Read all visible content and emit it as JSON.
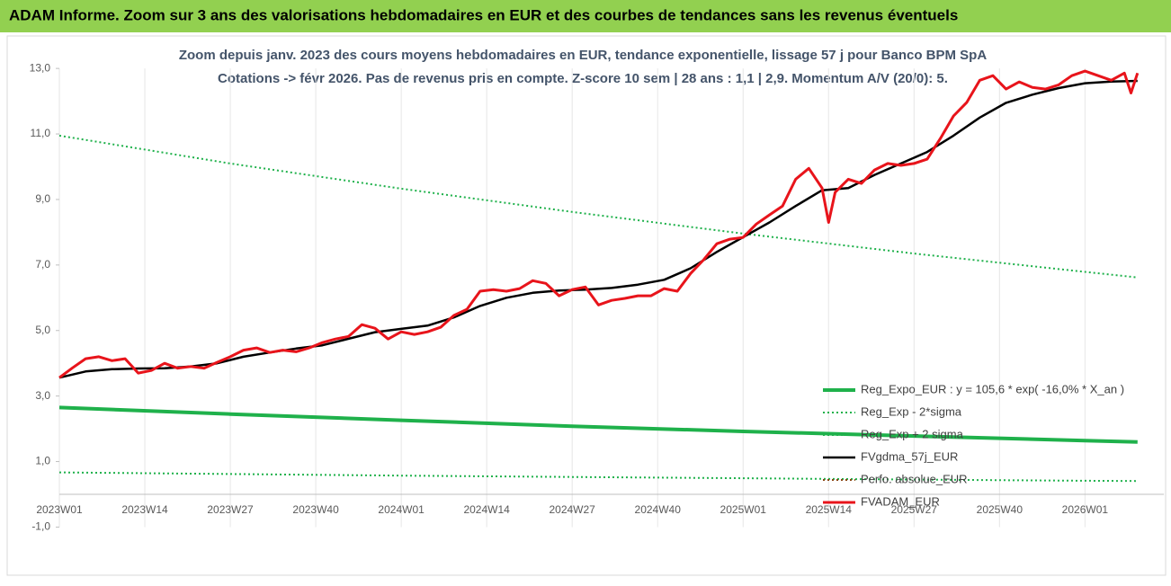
{
  "header": {
    "title": "ADAM Informe. Zoom sur 3 ans des valorisations hebdomadaires en EUR et des courbes de tendances sans les revenus éventuels"
  },
  "chart_data": {
    "type": "line",
    "title": "Zoom depuis janv. 2023 des cours moyens hebdomadaires en EUR, tendance exponentielle, lissage 57 j pour Banco BPM SpA",
    "subtitle": "Cotations -> févr 2026.  Pas de revenus pris en compte. Z-score 10 sem | 28 ans : 1,1 | 2,9. Momentum A/V (20/0): 5.",
    "xlim": [
      0,
      168
    ],
    "xticks": [
      {
        "value": 0,
        "label": "2023W01"
      },
      {
        "value": 13,
        "label": "2023W14"
      },
      {
        "value": 26,
        "label": "2023W27"
      },
      {
        "value": 39,
        "label": "2023W40"
      },
      {
        "value": 52,
        "label": "2024W01"
      },
      {
        "value": 65,
        "label": "2024W14"
      },
      {
        "value": 78,
        "label": "2024W27"
      },
      {
        "value": 91,
        "label": "2024W40"
      },
      {
        "value": 104,
        "label": "2025W01"
      },
      {
        "value": 117,
        "label": "2025W14"
      },
      {
        "value": 130,
        "label": "2025W27"
      },
      {
        "value": 143,
        "label": "2025W40"
      },
      {
        "value": 156,
        "label": "2026W01"
      }
    ],
    "ylim": [
      -1,
      13
    ],
    "yticks": [
      {
        "value": -1,
        "label": "-1,0"
      },
      {
        "value": 1,
        "label": "1,0"
      },
      {
        "value": 3,
        "label": "3,0"
      },
      {
        "value": 5,
        "label": "5,0"
      },
      {
        "value": 7,
        "label": "7,0"
      },
      {
        "value": 9,
        "label": "9,0"
      },
      {
        "value": 11,
        "label": "11,0"
      },
      {
        "value": 13,
        "label": "13,0"
      }
    ],
    "grid": "x",
    "legend": "lower right",
    "series": [
      {
        "name": "Reg_Expo_EUR : y = 105,6 * exp( -16,0% * X_an )",
        "color": "#1fb14b",
        "style": "solid",
        "width": 4,
        "x": [
          0,
          26,
          52,
          78,
          104,
          130,
          156,
          164
        ],
        "values": [
          2.65,
          2.45,
          2.26,
          2.08,
          1.92,
          1.78,
          1.64,
          1.6
        ]
      },
      {
        "name": "Reg_Exp - 2*sigma",
        "color": "#1fb14b",
        "style": "dotted",
        "width": 2,
        "x": [
          0,
          26,
          52,
          78,
          104,
          130,
          156,
          164
        ],
        "values": [
          0.67,
          0.62,
          0.57,
          0.53,
          0.49,
          0.45,
          0.415,
          0.405
        ]
      },
      {
        "name": "Reg_Exp + 2 sigma",
        "color": "#1fb14b",
        "style": "dotted",
        "width": 2,
        "x": [
          0,
          26,
          52,
          78,
          104,
          130,
          156,
          164
        ],
        "values": [
          10.95,
          10.1,
          9.33,
          8.62,
          7.96,
          7.35,
          6.79,
          6.62
        ]
      },
      {
        "name": "FVgdma_57j_EUR",
        "color": "#000000",
        "style": "solid",
        "width": 2.5,
        "x": [
          0,
          4,
          8,
          12,
          16,
          20,
          24,
          28,
          32,
          36,
          40,
          44,
          48,
          52,
          56,
          60,
          64,
          68,
          72,
          76,
          80,
          84,
          88,
          92,
          96,
          100,
          104,
          108,
          112,
          116,
          120,
          124,
          128,
          132,
          136,
          140,
          144,
          148,
          152,
          156,
          160,
          164
        ],
        "values": [
          3.56,
          3.75,
          3.82,
          3.84,
          3.85,
          3.9,
          4.0,
          4.2,
          4.33,
          4.45,
          4.55,
          4.75,
          4.95,
          5.05,
          5.15,
          5.4,
          5.75,
          6.0,
          6.15,
          6.22,
          6.25,
          6.3,
          6.4,
          6.55,
          6.9,
          7.4,
          7.85,
          8.3,
          8.8,
          9.28,
          9.35,
          9.75,
          10.1,
          10.45,
          10.95,
          11.5,
          11.95,
          12.2,
          12.4,
          12.55,
          12.6,
          12.62
        ]
      },
      {
        "name": "Perfo. absolue_EUR",
        "color": "#8b4513",
        "style": "dotted",
        "width": 2,
        "x": [],
        "values": []
      },
      {
        "name": "FVADAM_EUR",
        "color": "#e8141b",
        "style": "solid",
        "width": 3,
        "x": [
          0,
          2,
          4,
          6,
          8,
          10,
          12,
          14,
          16,
          18,
          20,
          22,
          24,
          26,
          28,
          30,
          32,
          34,
          36,
          38,
          40,
          42,
          44,
          46,
          48,
          50,
          52,
          54,
          56,
          58,
          60,
          62,
          64,
          66,
          68,
          70,
          72,
          74,
          76,
          78,
          80,
          82,
          84,
          86,
          88,
          90,
          92,
          94,
          96,
          98,
          100,
          102,
          104,
          106,
          108,
          110,
          112,
          114,
          116,
          117,
          118,
          120,
          122,
          124,
          126,
          128,
          130,
          132,
          134,
          136,
          138,
          140,
          142,
          144,
          146,
          148,
          150,
          152,
          154,
          156,
          158,
          160,
          162,
          163,
          164
        ],
        "values": [
          3.56,
          3.86,
          4.14,
          4.2,
          4.08,
          4.14,
          3.7,
          3.78,
          4.0,
          3.85,
          3.9,
          3.85,
          4.03,
          4.2,
          4.4,
          4.47,
          4.33,
          4.4,
          4.35,
          4.47,
          4.63,
          4.74,
          4.82,
          5.18,
          5.07,
          4.74,
          4.96,
          4.88,
          4.96,
          5.1,
          5.46,
          5.65,
          6.2,
          6.25,
          6.2,
          6.28,
          6.52,
          6.44,
          6.06,
          6.25,
          6.33,
          5.78,
          5.92,
          5.98,
          6.06,
          6.06,
          6.28,
          6.2,
          6.74,
          7.16,
          7.65,
          7.79,
          7.84,
          8.25,
          8.53,
          8.8,
          9.62,
          9.95,
          9.35,
          8.3,
          9.22,
          9.62,
          9.49,
          9.9,
          10.1,
          10.04,
          10.1,
          10.23,
          10.86,
          11.55,
          11.96,
          12.64,
          12.78,
          12.37,
          12.59,
          12.42,
          12.37,
          12.5,
          12.78,
          12.92,
          12.78,
          12.64,
          12.86,
          12.25,
          12.86
        ]
      }
    ]
  }
}
